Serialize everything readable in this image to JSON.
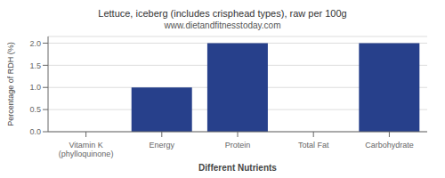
{
  "chart_data": {
    "type": "bar",
    "title": "Lettuce, iceberg (includes crisphead types), raw per 100g",
    "subtitle": "www.dietandfitnesstoday.com",
    "xlabel": "Different Nutrients",
    "ylabel": "Percentage of RDH (%)",
    "categories": [
      "Vitamin K (phylloquinone)",
      "Energy",
      "Protein",
      "Total Fat",
      "Carbohydrate"
    ],
    "values": [
      0.0,
      1.0,
      2.0,
      0.0,
      2.0
    ],
    "color": "#27408B",
    "ylim": [
      0,
      2.15
    ],
    "yticks": [
      {
        "value": 0,
        "label": "0.0"
      },
      0.5,
      {
        "value": 1,
        "label": "1.0"
      },
      1.5,
      {
        "value": 2,
        "label": "2.0"
      }
    ],
    "grid": true
  }
}
